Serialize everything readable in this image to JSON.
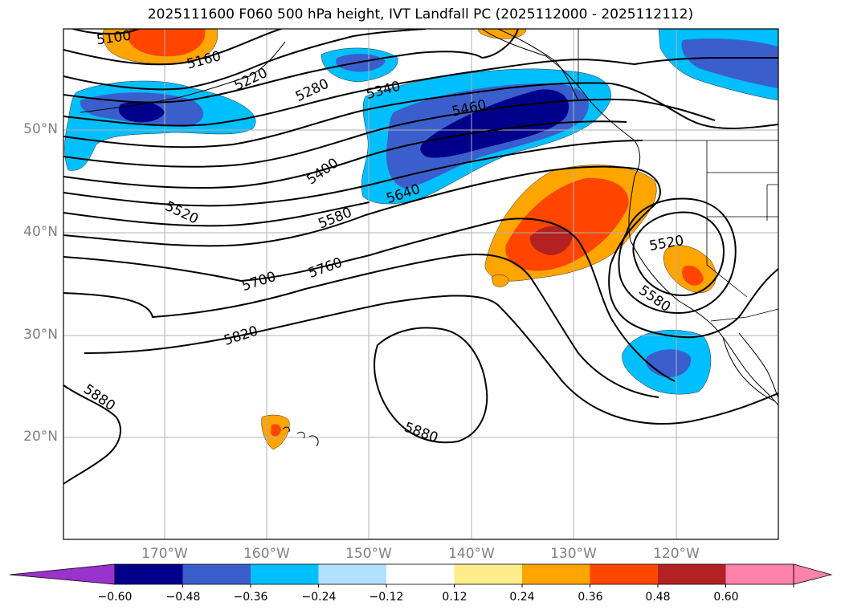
{
  "title": "2025111600 F060 500 hPa height, IVT Landfall PC (2025112000 - 2025112112)",
  "lat_labels": [
    "50°N",
    "40°N",
    "30°N",
    "20°N"
  ],
  "lon_labels": [
    "170°W",
    "160°W",
    "150°W",
    "140°W",
    "130°W",
    "120°W"
  ],
  "contour_labels": [
    "5100",
    "5160",
    "5220",
    "5280",
    "5340",
    "5400",
    "5460",
    "5520",
    "5580",
    "5640",
    "5700",
    "5760",
    "5820",
    "5880",
    "5880",
    "5520",
    "5580"
  ],
  "colorbar": {
    "tick_labels": [
      "−0.60",
      "−0.48",
      "−0.36",
      "−0.24",
      "−0.12",
      "0.12",
      "0.24",
      "0.36",
      "0.48",
      "0.60"
    ],
    "under_color": "#9933cc",
    "colors": [
      "#00008b",
      "#3a5fcd",
      "#00bfff",
      "#b0e2ff",
      "#ffffff",
      "#ffec8b",
      "#ffa500",
      "#ff4500",
      "#b22222",
      "#ff82ab"
    ],
    "over_color": "#ff82ab"
  }
}
